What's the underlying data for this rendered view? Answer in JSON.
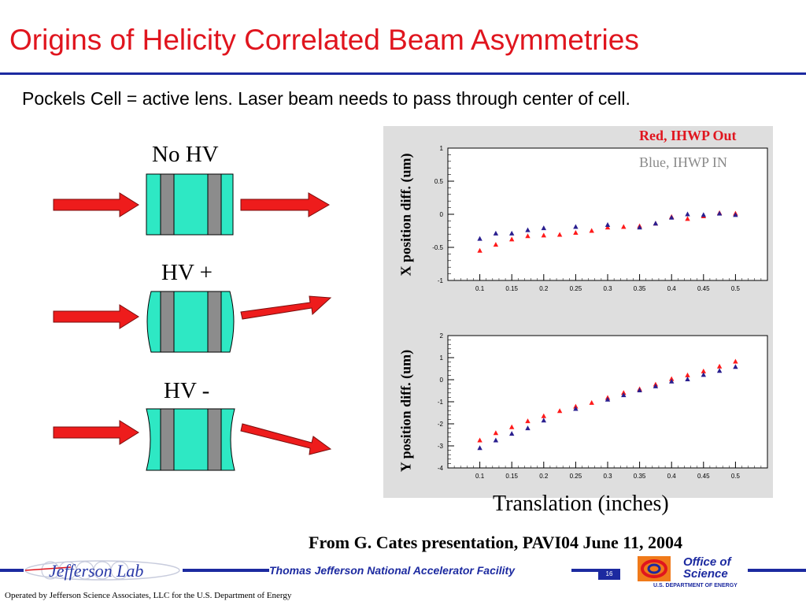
{
  "title": "Origins of Helicity Correlated Beam Asymmetries",
  "subtitle": "Pockels Cell = active lens. Laser beam needs to pass through center of cell.",
  "diagram": {
    "labels": [
      "No HV",
      "HV +",
      "HV -"
    ]
  },
  "colors": {
    "title": "#e0151e",
    "rule": "#1c2aa0",
    "arrow": "#ee1c1c",
    "cell": "#2ee8c4",
    "red_series": "#ff1a1a",
    "blue_series": "#2a1f8f"
  },
  "chart_data": [
    {
      "type": "scatter",
      "ylabel": "X position diff. (um)",
      "xlabel": "",
      "xlim": [
        0.05,
        0.55
      ],
      "ylim": [
        -1,
        1
      ],
      "xticks": [
        "0.1",
        "0.15",
        "0.2",
        "0.25",
        "0.3",
        "0.35",
        "0.4",
        "0.45",
        "0.5"
      ],
      "yticks": [
        "1",
        "0.5",
        "0",
        "-0.5",
        "-1"
      ],
      "legend": [
        "Red, IHWP Out",
        "Blue, IHWP IN"
      ],
      "series": [
        {
          "name": "Red, IHWP Out",
          "x": [
            0.1,
            0.125,
            0.15,
            0.175,
            0.2,
            0.225,
            0.25,
            0.275,
            0.3,
            0.325,
            0.35,
            0.375,
            0.4,
            0.425,
            0.45,
            0.475,
            0.5
          ],
          "y": [
            -0.55,
            -0.46,
            -0.38,
            -0.33,
            -0.32,
            -0.31,
            -0.28,
            -0.25,
            -0.2,
            -0.19,
            -0.18,
            -0.14,
            -0.04,
            -0.07,
            -0.03,
            0.02,
            0.01
          ]
        },
        {
          "name": "Blue, IHWP IN",
          "x": [
            0.1,
            0.125,
            0.15,
            0.175,
            0.2,
            0.25,
            0.3,
            0.35,
            0.375,
            0.4,
            0.425,
            0.45,
            0.475,
            0.5
          ],
          "y": [
            -0.37,
            -0.29,
            -0.29,
            -0.24,
            -0.21,
            -0.19,
            -0.16,
            -0.2,
            -0.14,
            -0.05,
            0.0,
            -0.01,
            0.01,
            -0.01
          ]
        }
      ]
    },
    {
      "type": "scatter",
      "ylabel": "Y position diff. (um)",
      "xlabel": "Translation (inches)",
      "xlim": [
        0.05,
        0.55
      ],
      "ylim": [
        -4,
        2
      ],
      "xticks": [
        "0.1",
        "0.15",
        "0.2",
        "0.25",
        "0.3",
        "0.35",
        "0.4",
        "0.45",
        "0.5"
      ],
      "yticks": [
        "2",
        "1",
        "0",
        "-1",
        "-2",
        "-3",
        "-4"
      ],
      "series": [
        {
          "name": "Red, IHWP Out",
          "x": [
            0.1,
            0.125,
            0.15,
            0.175,
            0.2,
            0.225,
            0.25,
            0.275,
            0.3,
            0.325,
            0.35,
            0.375,
            0.4,
            0.425,
            0.45,
            0.475,
            0.5
          ],
          "y": [
            -2.75,
            -2.42,
            -2.15,
            -1.88,
            -1.65,
            -1.42,
            -1.22,
            -1.05,
            -0.82,
            -0.6,
            -0.43,
            -0.22,
            0.03,
            0.2,
            0.38,
            0.6,
            0.82
          ]
        },
        {
          "name": "Blue, IHWP IN",
          "x": [
            0.1,
            0.125,
            0.15,
            0.175,
            0.2,
            0.25,
            0.3,
            0.325,
            0.35,
            0.375,
            0.4,
            0.425,
            0.45,
            0.475,
            0.5
          ],
          "y": [
            -3.1,
            -2.75,
            -2.45,
            -2.2,
            -1.85,
            -1.32,
            -0.9,
            -0.7,
            -0.48,
            -0.3,
            -0.08,
            0.02,
            0.22,
            0.4,
            0.58
          ]
        }
      ]
    }
  ],
  "citation": "From G. Cates presentation, PAVI04 June 11, 2004",
  "footer": {
    "logo_text": "Jefferson Lab",
    "facility": "Thomas Jefferson National Accelerator Facility",
    "slide_number": "16",
    "office_line1": "Office of",
    "office_line2": "Science",
    "office_sub": "U.S. DEPARTMENT OF ENERGY",
    "operated": "Operated by Jefferson Science Associates, LLC  for the U.S. Department of Energy"
  }
}
